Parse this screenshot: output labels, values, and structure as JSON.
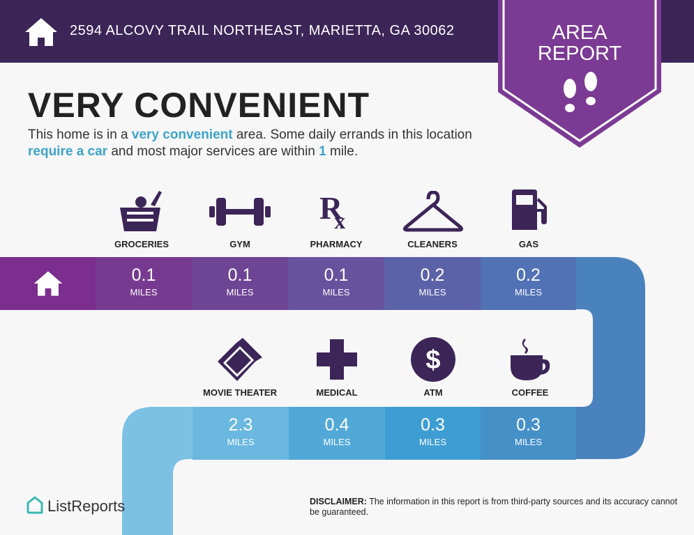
{
  "header": {
    "address": "2594 ALCOVY TRAIL NORTHEAST, MARIETTA, GA 30062",
    "badge_line1": "AREA",
    "badge_line2": "REPORT"
  },
  "summary": {
    "title": "VERY CONVENIENT",
    "text_1": "This home is in a ",
    "hl_1": "very convenient",
    "text_2": " area. Some daily errands in this location ",
    "hl_2": "require a car",
    "text_3": " and most major services are within ",
    "hl_3": "1",
    "text_4": " mile."
  },
  "row1": [
    {
      "label": "GROCERIES",
      "value": "0.1",
      "unit": "MILES",
      "icon": "grocery-basket-icon"
    },
    {
      "label": "GYM",
      "value": "0.1",
      "unit": "MILES",
      "icon": "dumbbell-icon"
    },
    {
      "label": "PHARMACY",
      "value": "0.1",
      "unit": "MILES",
      "icon": "rx-icon"
    },
    {
      "label": "CLEANERS",
      "value": "0.2",
      "unit": "MILES",
      "icon": "hanger-icon"
    },
    {
      "label": "GAS",
      "value": "0.2",
      "unit": "MILES",
      "icon": "gas-pump-icon"
    }
  ],
  "row2": [
    {
      "label": "MOVIE THEATER",
      "value": "2.3",
      "unit": "MILES",
      "icon": "ticket-icon"
    },
    {
      "label": "MEDICAL",
      "value": "0.4",
      "unit": "MILES",
      "icon": "medical-cross-icon"
    },
    {
      "label": "ATM",
      "value": "0.3",
      "unit": "MILES",
      "icon": "dollar-icon"
    },
    {
      "label": "COFFEE",
      "value": "0.3",
      "unit": "MILES",
      "icon": "coffee-cup-icon"
    }
  ],
  "footer": {
    "logo": "ListReports",
    "disclaimer_label": "DISCLAIMER:",
    "disclaimer": " The information in this report is from third-party sources and its accuracy cannot be guaranteed."
  },
  "colors": {
    "header": "#3c2557",
    "accent": "#3da3c9",
    "icon": "#3c2557"
  }
}
